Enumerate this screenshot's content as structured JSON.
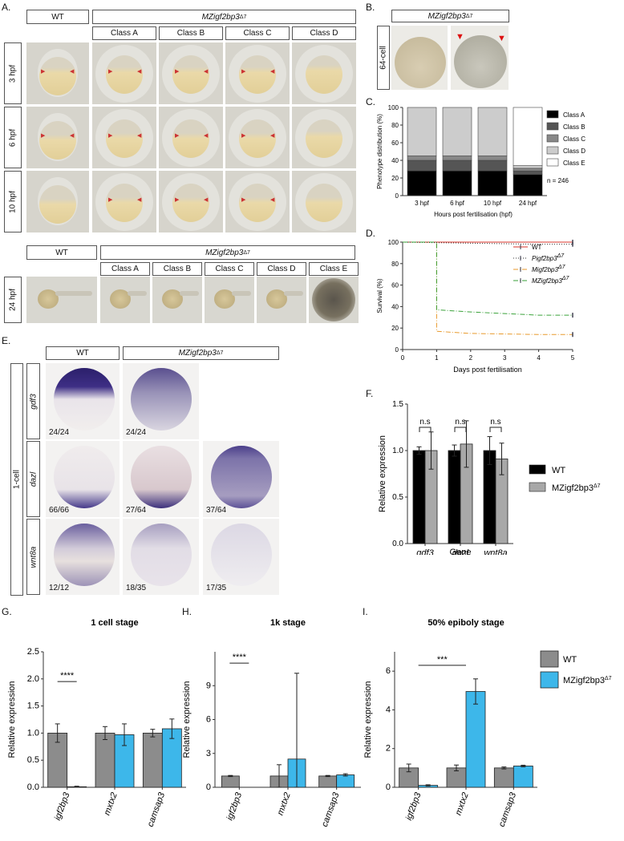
{
  "panelA": {
    "label": "A.",
    "wt": "WT",
    "mz": "MZigf2bp3",
    "sup": "Δ7",
    "classes": [
      "Class A",
      "Class B",
      "Class C",
      "Class D"
    ],
    "stages": [
      "3 hpf",
      "6 hpf",
      "10 hpf"
    ],
    "bottom_wt": "WT",
    "bottom_mz": "MZigf2bp3",
    "bottom_classes": [
      "Class A",
      "Class B",
      "Class C",
      "Class D",
      "Class E"
    ],
    "bottom_stage": "24 hpf"
  },
  "panelB": {
    "label": "B.",
    "title": "MZigf2bp3",
    "sup": "Δ7",
    "stage": "64-cell"
  },
  "panelC": {
    "label": "C."
  },
  "panelD": {
    "label": "D."
  },
  "panelE": {
    "label": "E.",
    "wt": "WT",
    "mz": "MZigf2bp3",
    "sup": "Δ7",
    "stage": "1-cell",
    "genes": [
      "gdf3",
      "dazl",
      "wnt8a"
    ],
    "counts": {
      "gdf3": [
        "24/24",
        "24/24"
      ],
      "dazl": [
        "66/66",
        "27/64",
        "37/64"
      ],
      "wnt8a": [
        "12/12",
        "18/35",
        "17/35"
      ]
    }
  },
  "panelF": {
    "label": "F."
  },
  "panelG": {
    "label": "G."
  },
  "panelH": {
    "label": "H."
  },
  "panelI": {
    "label": "I."
  },
  "chart_data": [
    {
      "id": "C",
      "type": "bar",
      "stacked": true,
      "categories": [
        "3 hpf",
        "6 hpf",
        "10 hpf",
        "24 hpf"
      ],
      "series": [
        {
          "name": "Class A",
          "color": "#000000",
          "values": [
            28,
            28,
            28,
            24
          ]
        },
        {
          "name": "Class B",
          "color": "#555555",
          "values": [
            12,
            12,
            12,
            4
          ]
        },
        {
          "name": "Class C",
          "color": "#888888",
          "values": [
            5,
            5,
            5,
            3
          ]
        },
        {
          "name": "Class D",
          "color": "#cccccc",
          "values": [
            55,
            55,
            55,
            3
          ]
        },
        {
          "name": "Class E",
          "color": "#ffffff",
          "values": [
            0,
            0,
            0,
            66
          ]
        }
      ],
      "xlabel": "Hours post fertilisation (hpf)",
      "ylabel": "Phenotype distribution (%)",
      "ylim": [
        0,
        100
      ],
      "yticks": [
        "0",
        "20",
        "40",
        "60",
        "80",
        "100"
      ],
      "note": "n = 246",
      "legend": "right"
    },
    {
      "id": "D",
      "type": "line",
      "xlabel": "Days post fertilisation",
      "ylabel": "Survival (%)",
      "xlim": [
        0,
        5
      ],
      "ylim": [
        0,
        100
      ],
      "xticks": [
        "0",
        "1",
        "2",
        "3",
        "4",
        "5"
      ],
      "yticks": [
        "0",
        "20",
        "40",
        "60",
        "80",
        "100"
      ],
      "series": [
        {
          "name": "WT",
          "color": "#d9342b",
          "dash": "",
          "x": [
            0,
            5
          ],
          "y": [
            100,
            100
          ]
        },
        {
          "name": "Pigf2bp3",
          "sup": "Δ7",
          "color": "#333333",
          "dash": "1,2",
          "x": [
            0,
            4,
            5
          ],
          "y": [
            100,
            98,
            98
          ]
        },
        {
          "name": "Migf2bp3",
          "sup": "Δ7",
          "color": "#e89a2c",
          "dash": "6,2,1,2",
          "x": [
            0,
            1,
            1,
            2,
            4,
            5
          ],
          "y": [
            100,
            100,
            17,
            15,
            14,
            14
          ]
        },
        {
          "name": "MZigf2bp3",
          "sup": "Δ7",
          "color": "#3aa23a",
          "dash": "6,2,1,2",
          "x": [
            0,
            1,
            1,
            2,
            4,
            5
          ],
          "y": [
            100,
            100,
            37,
            35,
            32,
            32
          ]
        }
      ],
      "legend": "right"
    },
    {
      "id": "F",
      "type": "bar",
      "categories": [
        "gdf3",
        "dazl",
        "wnt8a"
      ],
      "series": [
        {
          "name": "WT",
          "color": "#000000",
          "values": [
            1.0,
            1.0,
            1.0
          ],
          "err": [
            0.04,
            0.06,
            0.15
          ]
        },
        {
          "name": "MZigf2bp3",
          "sup": "Δ7",
          "color": "#a8a8a8",
          "values": [
            1.0,
            1.07,
            0.91
          ],
          "err": [
            0.2,
            0.25,
            0.17
          ]
        }
      ],
      "xlabel": "Gene",
      "ylabel": "Relative expression",
      "ylim": [
        0,
        1.5
      ],
      "yticks": [
        "0.0",
        "0.5",
        "1.0",
        "1.5"
      ],
      "annotations": [
        "n.s",
        "n.s",
        "n.s"
      ],
      "legend": "right"
    },
    {
      "id": "G",
      "type": "bar",
      "title": "1 cell stage",
      "categories": [
        "igf2bp3",
        "mxtx2",
        "camsap3"
      ],
      "series": [
        {
          "name": "WT",
          "color": "#8c8c8c",
          "values": [
            1.0,
            1.0,
            1.0
          ],
          "err": [
            0.17,
            0.12,
            0.07
          ]
        },
        {
          "name": "MZigf2bp3",
          "sup": "Δ7",
          "color": "#3db7ea",
          "values": [
            0.01,
            0.97,
            1.08
          ],
          "err": [
            0.01,
            0.2,
            0.18
          ]
        }
      ],
      "ylabel": "Relative expression",
      "ylim": [
        0,
        2.5
      ],
      "yticks": [
        "0.0",
        "0.5",
        "1.0",
        "1.5",
        "2.0",
        "2.5"
      ],
      "annotations": [
        "****"
      ]
    },
    {
      "id": "H",
      "type": "bar",
      "title": "1k stage",
      "categories": [
        "igf2bp3",
        "mxtx2",
        "camsap3"
      ],
      "series": [
        {
          "name": "WT",
          "color": "#8c8c8c",
          "values": [
            1.0,
            1.0,
            1.0
          ],
          "err": [
            0.05,
            1.0,
            0.05
          ]
        },
        {
          "name": "MZigf2bp3",
          "sup": "Δ7",
          "color": "#3db7ea",
          "values": [
            0.0,
            2.5,
            1.1
          ],
          "err": [
            0.0,
            7.6,
            0.1
          ]
        }
      ],
      "ylabel": "Relative expression",
      "ylim": [
        0,
        12
      ],
      "yticks": [
        "0",
        "3",
        "6",
        "9"
      ],
      "annotations": [
        "****"
      ]
    },
    {
      "id": "I",
      "type": "bar",
      "title": "50% epiboly stage",
      "categories": [
        "igf2bp3",
        "mxtx2",
        "camsap3"
      ],
      "series": [
        {
          "name": "WT",
          "color": "#8c8c8c",
          "values": [
            1.0,
            1.0,
            1.0
          ],
          "err": [
            0.2,
            0.15,
            0.05
          ]
        },
        {
          "name": "MZigf2bp3",
          "sup": "Δ7",
          "color": "#3db7ea",
          "values": [
            0.1,
            4.95,
            1.1
          ],
          "err": [
            0.03,
            0.65,
            0.04
          ]
        }
      ],
      "ylabel": "Relative expression",
      "ylim": [
        0,
        7
      ],
      "yticks": [
        "0",
        "2",
        "4",
        "6"
      ],
      "annotations": [
        "***"
      ],
      "legend": "right"
    }
  ]
}
